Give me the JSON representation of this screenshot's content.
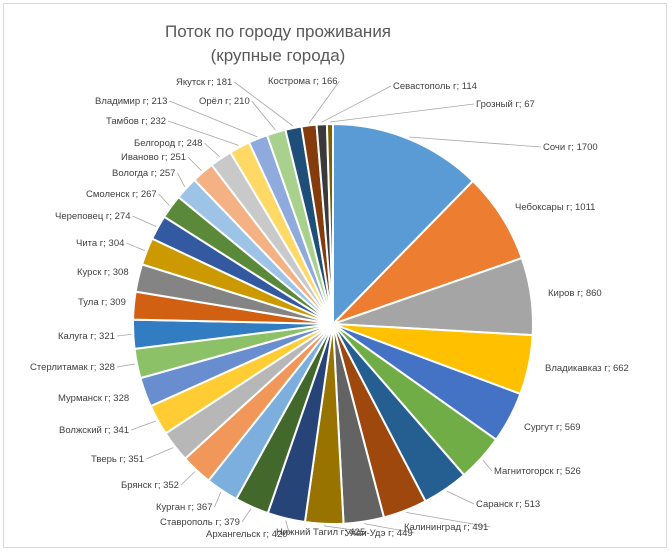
{
  "chart_data": {
    "type": "pie",
    "title_line1": "Поток по городу проживания",
    "title_line2": "(крупные города)",
    "slices": [
      {
        "label": "Сочи г",
        "value": 1700,
        "color": "#5b9bd5"
      },
      {
        "label": "Чебоксары г",
        "value": 1011,
        "color": "#ed7d31"
      },
      {
        "label": "Киров г",
        "value": 860,
        "color": "#a5a5a5"
      },
      {
        "label": "Владикавказ г",
        "value": 662,
        "color": "#ffc000"
      },
      {
        "label": "Сургут г",
        "value": 569,
        "color": "#4472c4"
      },
      {
        "label": "Магнитогорск г",
        "value": 526,
        "color": "#70ad47"
      },
      {
        "label": "Саранск г",
        "value": 513,
        "color": "#255e91"
      },
      {
        "label": "Калининград г",
        "value": 491,
        "color": "#9e480e"
      },
      {
        "label": "Улан-Удэ г",
        "value": 449,
        "color": "#636363"
      },
      {
        "label": "Нижний Тагил г",
        "value": 425,
        "color": "#997300"
      },
      {
        "label": "Архангельск г",
        "value": 420,
        "color": "#264478"
      },
      {
        "label": "Ставрополь г",
        "value": 379,
        "color": "#43682b"
      },
      {
        "label": "Курган г",
        "value": 367,
        "color": "#7cafdd"
      },
      {
        "label": "Брянск г",
        "value": 352,
        "color": "#f1975a"
      },
      {
        "label": "Тверь г",
        "value": 351,
        "color": "#b7b7b7"
      },
      {
        "label": "Волжский г",
        "value": 341,
        "color": "#ffcd33"
      },
      {
        "label": "Мурманск г",
        "value": 328,
        "color": "#698ed0"
      },
      {
        "label": "Стерлитамак г",
        "value": 328,
        "color": "#8cc168"
      },
      {
        "label": "Калуга г",
        "value": 321,
        "color": "#327dc2"
      },
      {
        "label": "Тула г",
        "value": 309,
        "color": "#d26012"
      },
      {
        "label": "Курск г",
        "value": 308,
        "color": "#848484"
      },
      {
        "label": "Чита г",
        "value": 304,
        "color": "#cc9a00"
      },
      {
        "label": "Череповец г",
        "value": 274,
        "color": "#335aa1"
      },
      {
        "label": "Смоленск г",
        "value": 267,
        "color": "#5a8a39"
      },
      {
        "label": "Вологда г",
        "value": 257,
        "color": "#9dc3e6"
      },
      {
        "label": "Иваново г",
        "value": 251,
        "color": "#f4b183"
      },
      {
        "label": "Белгород г",
        "value": 248,
        "color": "#c9c9c9"
      },
      {
        "label": "Тамбов г",
        "value": 232,
        "color": "#ffd966"
      },
      {
        "label": "Владимир г",
        "value": 213,
        "color": "#8faadc"
      },
      {
        "label": "Орёл г",
        "value": 210,
        "color": "#a9d18e"
      },
      {
        "label": "Якутск г",
        "value": 181,
        "color": "#1f4e79"
      },
      {
        "label": "Кострома г",
        "value": 166,
        "color": "#843c0c"
      },
      {
        "label": "Севастополь г",
        "value": 114,
        "color": "#3a3a3a"
      },
      {
        "label": "Грозный г",
        "value": 67,
        "color": "#7f6000"
      }
    ]
  }
}
